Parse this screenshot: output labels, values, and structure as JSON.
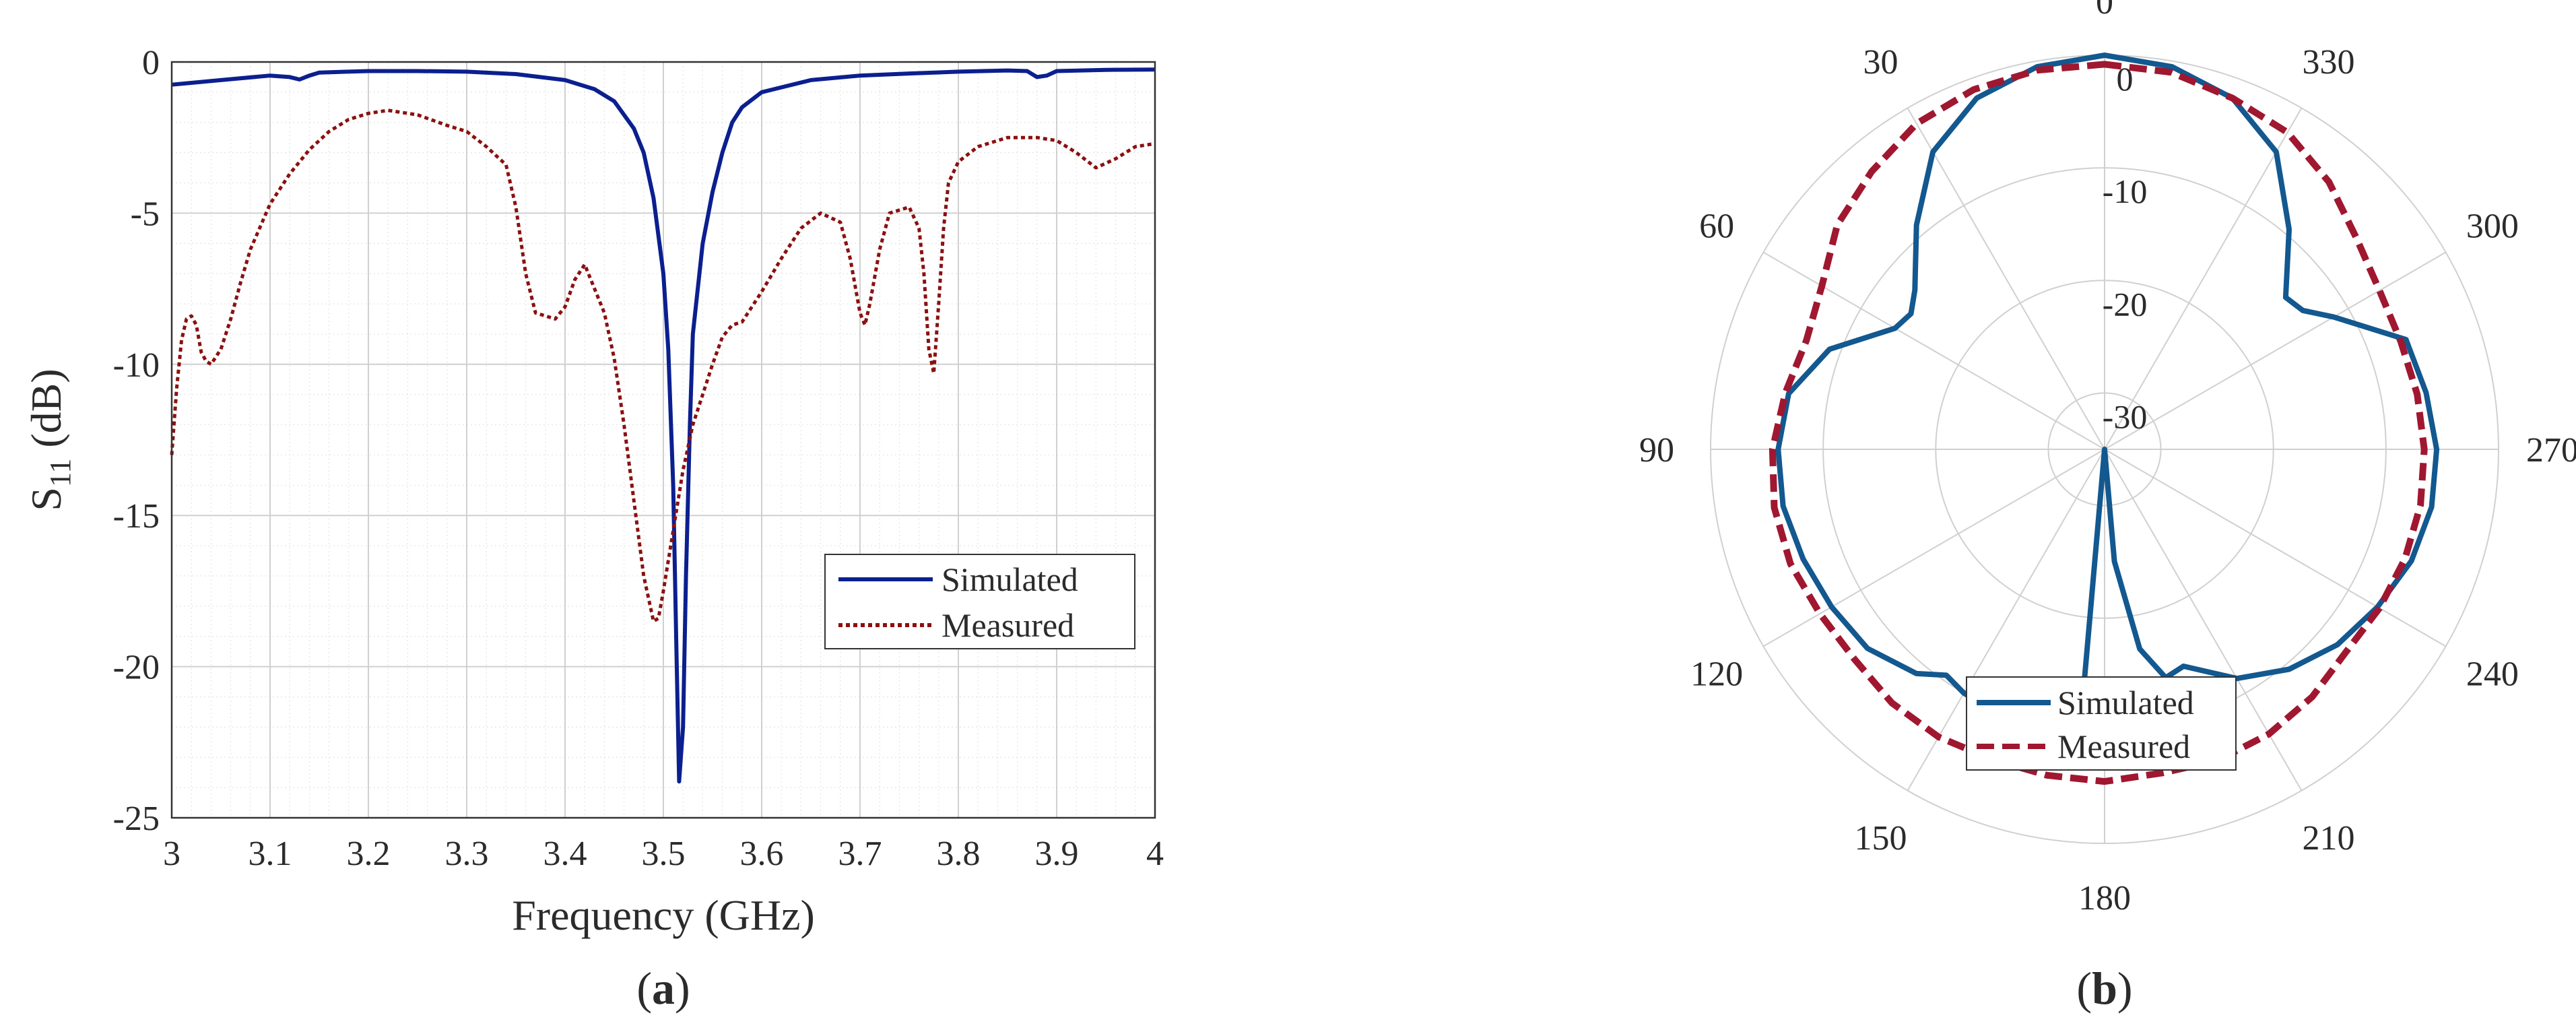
{
  "colors": {
    "simulated_a": "#0b1f8f",
    "measured_a": "#8b1010",
    "simulated_b": "#13588f",
    "measured_b": "#a01730",
    "grid": "#d0d0d0",
    "minor_grid": "#e4e4e4",
    "axis": "#333333"
  },
  "chart_data": [
    {
      "type": "line",
      "panel_label": "(a)",
      "xlabel": "Frequency (GHz)",
      "ylabel_main": "S",
      "ylabel_sub": "11",
      "ylabel_unit": " (dB)",
      "xlim": [
        3,
        4
      ],
      "ylim": [
        -25,
        0
      ],
      "xticks": [
        3,
        3.1,
        3.2,
        3.3,
        3.4,
        3.5,
        3.6,
        3.7,
        3.8,
        3.9,
        4
      ],
      "xtick_labels": [
        "3",
        "3.1",
        "3.2",
        "3.3",
        "3.4",
        "3.5",
        "3.6",
        "3.7",
        "3.8",
        "3.9",
        "4"
      ],
      "yticks": [
        0,
        -5,
        -10,
        -15,
        -20,
        -25
      ],
      "ytick_labels": [
        "0",
        "-5",
        "-10",
        "-15",
        "-20",
        "-25"
      ],
      "grid": true,
      "minor_grid": true,
      "legend_position": "lower-right",
      "series": [
        {
          "name": "Simulated",
          "style": "solid",
          "points": [
            [
              3.0,
              -0.75
            ],
            [
              3.05,
              -0.6
            ],
            [
              3.1,
              -0.45
            ],
            [
              3.12,
              -0.5
            ],
            [
              3.13,
              -0.58
            ],
            [
              3.14,
              -0.45
            ],
            [
              3.15,
              -0.35
            ],
            [
              3.2,
              -0.3
            ],
            [
              3.25,
              -0.3
            ],
            [
              3.3,
              -0.32
            ],
            [
              3.35,
              -0.4
            ],
            [
              3.4,
              -0.6
            ],
            [
              3.43,
              -0.9
            ],
            [
              3.45,
              -1.3
            ],
            [
              3.47,
              -2.2
            ],
            [
              3.48,
              -3.0
            ],
            [
              3.49,
              -4.5
            ],
            [
              3.5,
              -7.0
            ],
            [
              3.505,
              -9.5
            ],
            [
              3.51,
              -14.0
            ],
            [
              3.513,
              -19.0
            ],
            [
              3.516,
              -23.8
            ],
            [
              3.52,
              -22.0
            ],
            [
              3.523,
              -17.0
            ],
            [
              3.527,
              -12.0
            ],
            [
              3.53,
              -9.0
            ],
            [
              3.535,
              -7.5
            ],
            [
              3.54,
              -6.0
            ],
            [
              3.55,
              -4.3
            ],
            [
              3.56,
              -3.0
            ],
            [
              3.57,
              -2.0
            ],
            [
              3.58,
              -1.5
            ],
            [
              3.6,
              -1.0
            ],
            [
              3.65,
              -0.6
            ],
            [
              3.7,
              -0.45
            ],
            [
              3.75,
              -0.38
            ],
            [
              3.8,
              -0.32
            ],
            [
              3.85,
              -0.28
            ],
            [
              3.87,
              -0.3
            ],
            [
              3.88,
              -0.5
            ],
            [
              3.89,
              -0.45
            ],
            [
              3.9,
              -0.3
            ],
            [
              3.95,
              -0.26
            ],
            [
              4.0,
              -0.25
            ]
          ]
        },
        {
          "name": "Measured",
          "style": "dotted",
          "points": [
            [
              3.0,
              -13.0
            ],
            [
              3.005,
              -10.8
            ],
            [
              3.01,
              -9.2
            ],
            [
              3.015,
              -8.5
            ],
            [
              3.02,
              -8.4
            ],
            [
              3.025,
              -8.7
            ],
            [
              3.03,
              -9.6
            ],
            [
              3.035,
              -9.9
            ],
            [
              3.04,
              -10.0
            ],
            [
              3.05,
              -9.5
            ],
            [
              3.06,
              -8.5
            ],
            [
              3.07,
              -7.3
            ],
            [
              3.08,
              -6.2
            ],
            [
              3.1,
              -4.7
            ],
            [
              3.12,
              -3.7
            ],
            [
              3.14,
              -2.9
            ],
            [
              3.16,
              -2.3
            ],
            [
              3.18,
              -1.9
            ],
            [
              3.2,
              -1.7
            ],
            [
              3.22,
              -1.6
            ],
            [
              3.25,
              -1.75
            ],
            [
              3.28,
              -2.1
            ],
            [
              3.3,
              -2.3
            ],
            [
              3.32,
              -2.8
            ],
            [
              3.34,
              -3.4
            ],
            [
              3.35,
              -4.8
            ],
            [
              3.36,
              -7.0
            ],
            [
              3.37,
              -8.3
            ],
            [
              3.38,
              -8.4
            ],
            [
              3.39,
              -8.5
            ],
            [
              3.4,
              -8.1
            ],
            [
              3.41,
              -7.2
            ],
            [
              3.42,
              -6.7
            ],
            [
              3.43,
              -7.5
            ],
            [
              3.44,
              -8.3
            ],
            [
              3.45,
              -9.8
            ],
            [
              3.46,
              -12.0
            ],
            [
              3.47,
              -14.5
            ],
            [
              3.48,
              -17.0
            ],
            [
              3.49,
              -18.5
            ],
            [
              3.495,
              -18.4
            ],
            [
              3.5,
              -17.5
            ],
            [
              3.51,
              -15.5
            ],
            [
              3.52,
              -13.5
            ],
            [
              3.53,
              -12.0
            ],
            [
              3.54,
              -11.0
            ],
            [
              3.55,
              -10.0
            ],
            [
              3.56,
              -9.1
            ],
            [
              3.57,
              -8.7
            ],
            [
              3.58,
              -8.6
            ],
            [
              3.6,
              -7.6
            ],
            [
              3.62,
              -6.5
            ],
            [
              3.64,
              -5.5
            ],
            [
              3.66,
              -5.0
            ],
            [
              3.68,
              -5.3
            ],
            [
              3.69,
              -6.5
            ],
            [
              3.7,
              -8.3
            ],
            [
              3.705,
              -8.7
            ],
            [
              3.71,
              -8.0
            ],
            [
              3.72,
              -6.2
            ],
            [
              3.73,
              -5.0
            ],
            [
              3.74,
              -4.9
            ],
            [
              3.75,
              -4.8
            ],
            [
              3.76,
              -5.5
            ],
            [
              3.765,
              -7.0
            ],
            [
              3.77,
              -9.5
            ],
            [
              3.775,
              -10.3
            ],
            [
              3.78,
              -8.0
            ],
            [
              3.785,
              -5.5
            ],
            [
              3.79,
              -4.0
            ],
            [
              3.8,
              -3.3
            ],
            [
              3.82,
              -2.8
            ],
            [
              3.85,
              -2.5
            ],
            [
              3.88,
              -2.5
            ],
            [
              3.9,
              -2.6
            ],
            [
              3.92,
              -3.0
            ],
            [
              3.94,
              -3.5
            ],
            [
              3.96,
              -3.2
            ],
            [
              3.98,
              -2.8
            ],
            [
              4.0,
              -2.7
            ]
          ]
        }
      ]
    },
    {
      "type": "polar",
      "panel_label": "(b)",
      "r_min": -35,
      "r_max": 0,
      "r_ticks": [
        0,
        -10,
        -20,
        -30
      ],
      "r_tick_labels": [
        "0",
        "-10",
        "-20",
        "-30"
      ],
      "angle_ticks": [
        0,
        30,
        60,
        90,
        120,
        150,
        180,
        210,
        240,
        270,
        300,
        330
      ],
      "angle_tick_labels": [
        "0",
        "30",
        "60",
        "90",
        "120",
        "150",
        "180",
        "210",
        "240",
        "270",
        "300",
        "330"
      ],
      "angle_direction": "counterclockwise",
      "zero_location": "top",
      "grid": true,
      "legend_position": "bottom-center",
      "series": [
        {
          "name": "Simulated",
          "style": "solid",
          "points": [
            [
              0,
              0.0
            ],
            [
              10,
              -0.5
            ],
            [
              20,
              -1.8
            ],
            [
              30,
              -4.5
            ],
            [
              40,
              -9.0
            ],
            [
              50,
              -13.0
            ],
            [
              55,
              -14.0
            ],
            [
              60,
              -13.5
            ],
            [
              70,
              -9.0
            ],
            [
              80,
              -6.5
            ],
            [
              90,
              -6.0
            ],
            [
              100,
              -6.0
            ],
            [
              110,
              -6.5
            ],
            [
              120,
              -7.0
            ],
            [
              130,
              -7.5
            ],
            [
              140,
              -9.0
            ],
            [
              145,
              -10.5
            ],
            [
              150,
              -10.0
            ],
            [
              160,
              -9.5
            ],
            [
              165,
              -9.2
            ],
            [
              170,
              -9.0
            ],
            [
              175,
              -13.5
            ],
            [
              180,
              -35.0
            ],
            [
              185,
              -25.0
            ],
            [
              190,
              -17.0
            ],
            [
              195,
              -14.0
            ],
            [
              200,
              -14.5
            ],
            [
              210,
              -11.5
            ],
            [
              220,
              -9.5
            ],
            [
              230,
              -8.0
            ],
            [
              240,
              -7.0
            ],
            [
              250,
              -6.0
            ],
            [
              260,
              -5.5
            ],
            [
              270,
              -5.5
            ],
            [
              280,
              -6.0
            ],
            [
              290,
              -6.5
            ],
            [
              300,
              -11.5
            ],
            [
              305,
              -13.5
            ],
            [
              310,
              -14.0
            ],
            [
              320,
              -9.5
            ],
            [
              330,
              -4.5
            ],
            [
              340,
              -1.8
            ],
            [
              350,
              -0.5
            ],
            [
              360,
              0.0
            ]
          ]
        },
        {
          "name": "Measured",
          "style": "dashed",
          "points": [
            [
              0,
              -0.8
            ],
            [
              10,
              -0.8
            ],
            [
              20,
              -1.0
            ],
            [
              30,
              -1.6
            ],
            [
              40,
              -2.8
            ],
            [
              50,
              -4.0
            ],
            [
              60,
              -6.0
            ],
            [
              70,
              -6.8
            ],
            [
              80,
              -6.2
            ],
            [
              90,
              -5.5
            ],
            [
              100,
              -5.2
            ],
            [
              110,
              -5.3
            ],
            [
              120,
              -5.8
            ],
            [
              130,
              -6.0
            ],
            [
              140,
              -5.6
            ],
            [
              150,
              -5.5
            ],
            [
              160,
              -5.7
            ],
            [
              170,
              -5.6
            ],
            [
              180,
              -5.5
            ],
            [
              190,
              -5.8
            ],
            [
              200,
              -5.6
            ],
            [
              210,
              -5.8
            ],
            [
              220,
              -6.3
            ],
            [
              230,
              -7.0
            ],
            [
              240,
              -6.8
            ],
            [
              250,
              -6.6
            ],
            [
              260,
              -6.5
            ],
            [
              270,
              -6.6
            ],
            [
              280,
              -6.8
            ],
            [
              290,
              -7.0
            ],
            [
              300,
              -6.8
            ],
            [
              310,
              -5.8
            ],
            [
              320,
              -4.0
            ],
            [
              330,
              -2.5
            ],
            [
              340,
              -1.8
            ],
            [
              350,
              -1.0
            ],
            [
              360,
              -0.8
            ]
          ]
        }
      ]
    }
  ]
}
